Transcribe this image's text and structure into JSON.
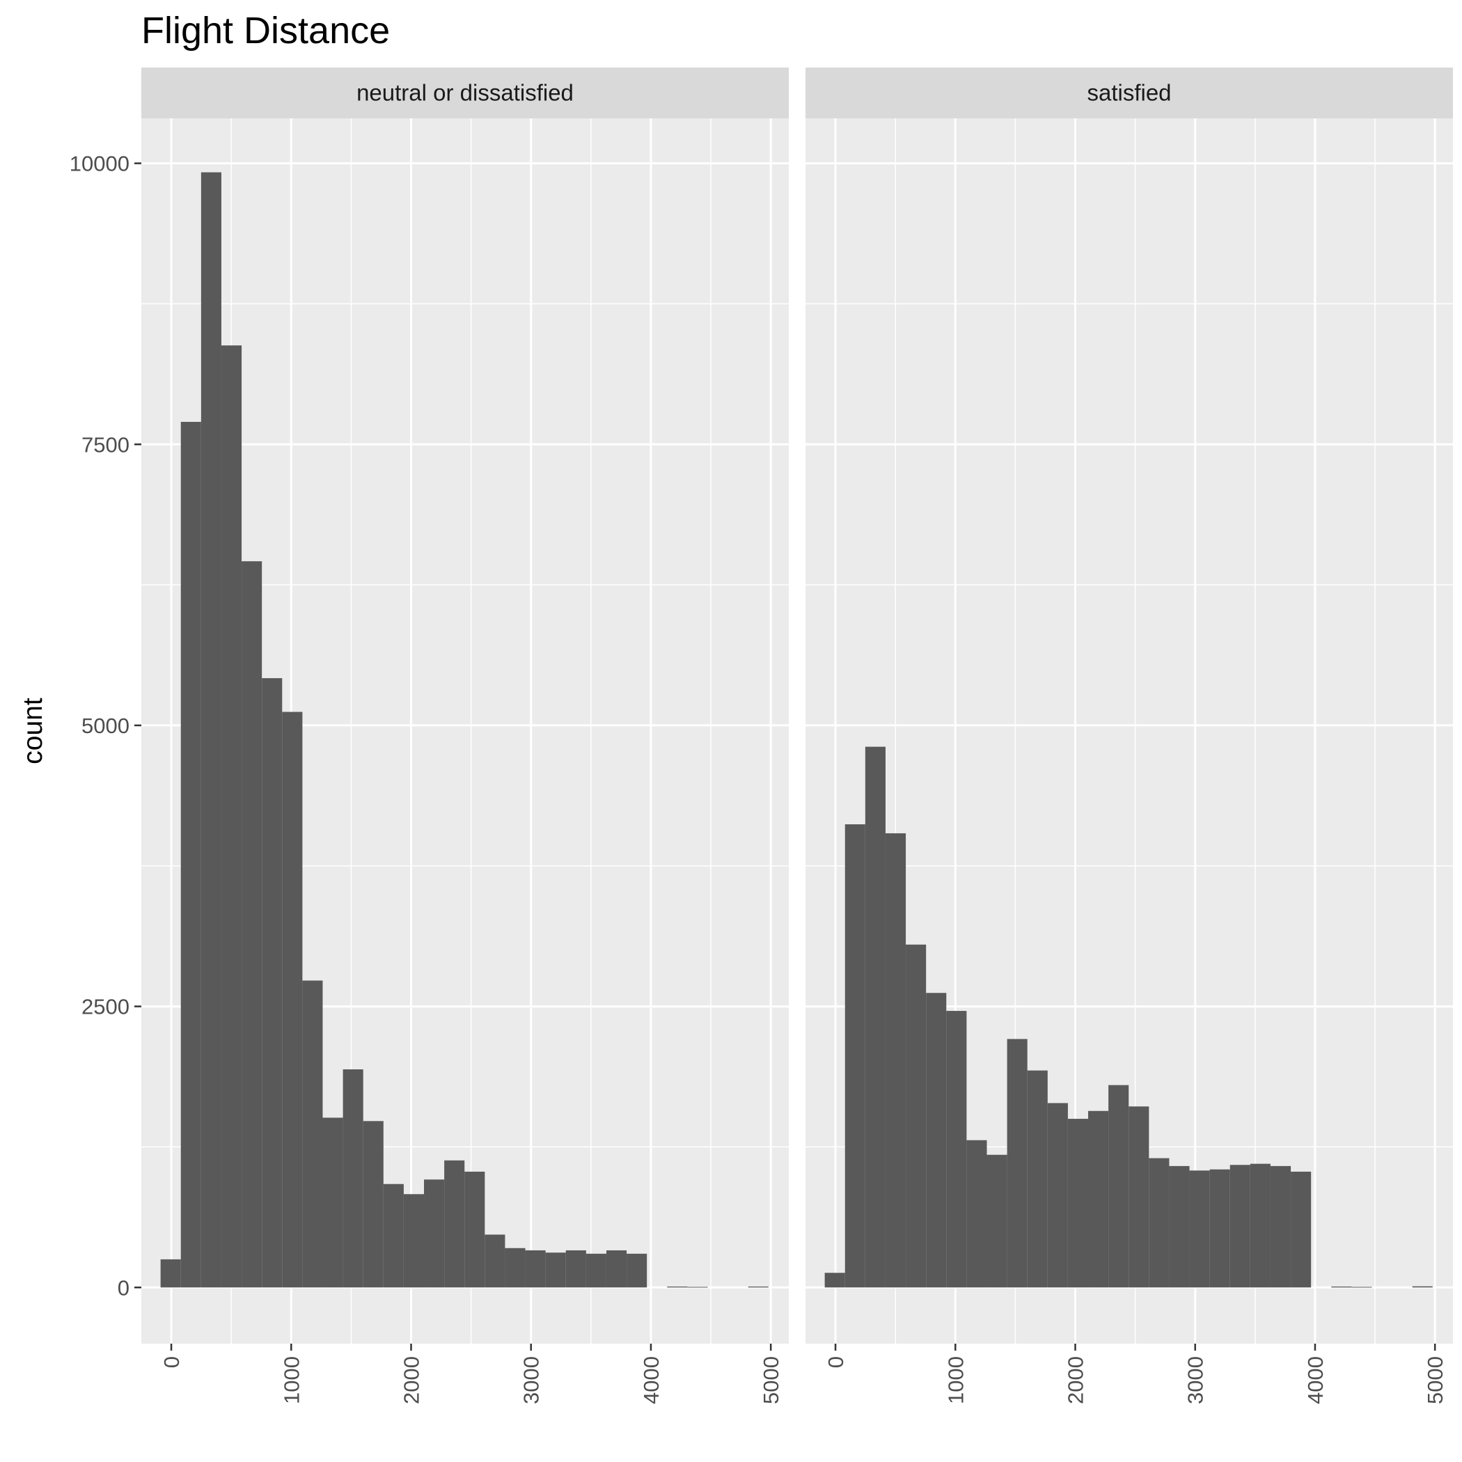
{
  "chart_data": {
    "type": "bar",
    "title": "Flight Distance",
    "xlabel": "",
    "ylabel": "count",
    "grid": true,
    "legend": "none",
    "bin_width": 169,
    "xlim": [
      -250,
      5150
    ],
    "ylim": [
      -500,
      10400
    ],
    "x_ticks": [
      0,
      1000,
      2000,
      3000,
      4000,
      5000
    ],
    "y_ticks": [
      0,
      2500,
      5000,
      7500,
      10000
    ],
    "bar_color": "#595959",
    "panel_color": "#ebebeb",
    "strip_color": "#d9d9d9",
    "bin_centers": [
      -5,
      164,
      333,
      502,
      671,
      840,
      1009,
      1178,
      1347,
      1516,
      1685,
      1854,
      2023,
      2192,
      2361,
      2530,
      2699,
      2868,
      3037,
      3206,
      3375,
      3544,
      3713,
      3882,
      4051,
      4220,
      4389,
      4558,
      4727,
      4896
    ],
    "panels": [
      {
        "name": "neutral or dissatisfied",
        "values": [
          250,
          7700,
          9920,
          8380,
          6460,
          5420,
          5120,
          2730,
          1510,
          1940,
          1480,
          920,
          830,
          960,
          1130,
          1030,
          470,
          350,
          330,
          310,
          330,
          300,
          330,
          300,
          0,
          8,
          5,
          0,
          0,
          8
        ]
      },
      {
        "name": "satisfied",
        "values": [
          130,
          4120,
          4810,
          4040,
          3050,
          2620,
          2460,
          1310,
          1180,
          2210,
          1930,
          1640,
          1500,
          1570,
          1800,
          1610,
          1150,
          1080,
          1040,
          1050,
          1090,
          1100,
          1080,
          1030,
          0,
          8,
          5,
          0,
          0,
          10
        ]
      }
    ]
  }
}
